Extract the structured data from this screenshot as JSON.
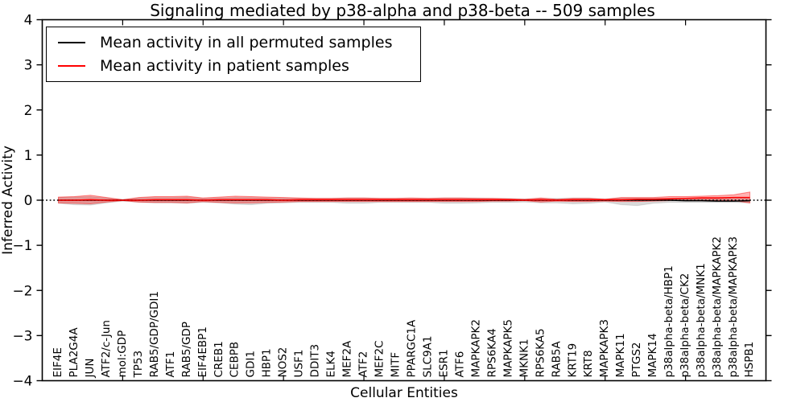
{
  "chart_data": {
    "type": "line",
    "title": "Signaling mediated by p38-alpha and p38-beta -- 509 samples",
    "xlabel": "Cellular Entities",
    "ylabel": "Inferred Activity",
    "ylim": [
      -4,
      4
    ],
    "ytick_values": [
      4,
      3,
      2,
      1,
      0,
      -1,
      -2,
      -3,
      -4
    ],
    "ytick_labels": [
      "4",
      "3",
      "2",
      "1",
      "0",
      "−1",
      "−2",
      "−3",
      "−4"
    ],
    "x_tick_start": 4,
    "x_tick_every": 5,
    "grid": false,
    "legend_position": "upper left",
    "zero_line_style": "dotted",
    "categories": [
      "EIF4E",
      "PLA2G4A",
      "JUN",
      "ATF2/c-Jun",
      "mol:GDP",
      "TP53",
      "RAB5/GDP/GDI1",
      "ATF1",
      "RAB5/GDP",
      "EIF4EBP1",
      "CREB1",
      "CEBPB",
      "GDI1",
      "HBP1",
      "NOS2",
      "USF1",
      "DDIT3",
      "ELK4",
      "MEF2A",
      "ATF2",
      "MEF2C",
      "MITF",
      "PPARGC1A",
      "SLC9A1",
      "ESR1",
      "ATF6",
      "MAPKAPK2",
      "RPS6KA4",
      "MAPKAPK5",
      "MKNK1",
      "RPS6KA5",
      "RAB5A",
      "KRT19",
      "KRT8",
      "MAPKAPK3",
      "MAPK11",
      "PTGS2",
      "MAPK14",
      "p38alpha-beta/HBP1",
      "p38alpha-beta/CK2",
      "p38alpha-beta/MNK1",
      "p38alpha-beta/MAPKAPK2",
      "p38alpha-beta/MAPKAPK3",
      "HSPB1"
    ],
    "series": [
      {
        "key": "permuted",
        "name": "Mean activity in all permuted samples",
        "color": "#000000",
        "values": [
          0,
          0,
          0,
          0,
          0,
          0,
          0,
          0,
          0,
          0,
          0,
          0,
          0,
          0,
          0,
          0,
          0,
          0,
          0,
          0,
          0,
          0,
          0,
          0,
          0,
          0,
          0,
          0,
          0,
          0,
          0,
          0,
          0,
          0,
          0,
          0,
          0,
          0,
          0,
          -0.01,
          -0.01,
          -0.02,
          -0.02,
          -0.01
        ],
        "band": {
          "color": "rgba(0,0,0,0.15)",
          "edge": "rgba(0,0,0,0.10)",
          "upper": [
            0.06,
            0.07,
            0.08,
            0.05,
            0.02,
            0.05,
            0.06,
            0.06,
            0.07,
            0.04,
            0.05,
            0.06,
            0.06,
            0.05,
            0.05,
            0.04,
            0.04,
            0.04,
            0.05,
            0.05,
            0.04,
            0.04,
            0.04,
            0.04,
            0.05,
            0.05,
            0.05,
            0.04,
            0.04,
            0.03,
            0.04,
            0.04,
            0.05,
            0.05,
            0.03,
            0.05,
            0.05,
            0.05,
            0.04,
            0.04,
            0.04,
            0.04,
            0.04,
            0.05
          ],
          "lower": [
            -0.07,
            -0.1,
            -0.11,
            -0.06,
            -0.02,
            -0.05,
            -0.06,
            -0.06,
            -0.07,
            -0.05,
            -0.06,
            -0.09,
            -0.1,
            -0.07,
            -0.06,
            -0.05,
            -0.05,
            -0.05,
            -0.07,
            -0.07,
            -0.05,
            -0.05,
            -0.05,
            -0.05,
            -0.07,
            -0.07,
            -0.06,
            -0.05,
            -0.05,
            -0.04,
            -0.06,
            -0.06,
            -0.08,
            -0.07,
            -0.04,
            -0.1,
            -0.12,
            -0.07,
            -0.05,
            -0.05,
            -0.05,
            -0.05,
            -0.05,
            -0.06
          ]
        }
      },
      {
        "key": "patient",
        "name": "Mean activity in patient samples",
        "color": "#ff0000",
        "values": [
          0,
          0,
          0.01,
          0,
          0,
          0,
          0.01,
          0.01,
          0.01,
          0,
          0.01,
          0.01,
          0.01,
          0.01,
          0,
          0.01,
          0.01,
          0.01,
          0.01,
          0.01,
          0.01,
          0.01,
          0.01,
          0.01,
          0.01,
          0.01,
          0.01,
          0.01,
          0.01,
          0,
          0.01,
          0,
          0.01,
          0.01,
          0.01,
          0.01,
          0.02,
          0.02,
          0.03,
          0.04,
          0.05,
          0.05,
          0.06,
          0.06
        ],
        "band": {
          "color": "rgba(255,0,0,0.30)",
          "edge": "rgba(255,0,0,0.45)",
          "upper": [
            0.07,
            0.08,
            0.11,
            0.06,
            0.01,
            0.06,
            0.08,
            0.08,
            0.09,
            0.05,
            0.07,
            0.09,
            0.08,
            0.07,
            0.06,
            0.05,
            0.04,
            0.04,
            0.05,
            0.05,
            0.04,
            0.04,
            0.05,
            0.04,
            0.05,
            0.05,
            0.04,
            0.04,
            0.03,
            0.02,
            0.05,
            0.02,
            0.04,
            0.04,
            0.02,
            0.06,
            0.06,
            0.06,
            0.08,
            0.08,
            0.09,
            0.1,
            0.12,
            0.18
          ],
          "lower": [
            -0.06,
            -0.07,
            -0.08,
            -0.04,
            -0.01,
            -0.04,
            -0.05,
            -0.05,
            -0.06,
            -0.03,
            -0.05,
            -0.06,
            -0.06,
            -0.05,
            -0.04,
            -0.03,
            -0.03,
            -0.03,
            -0.03,
            -0.03,
            -0.03,
            -0.03,
            -0.03,
            -0.03,
            -0.03,
            -0.03,
            -0.03,
            -0.02,
            -0.02,
            -0.01,
            -0.04,
            -0.02,
            -0.03,
            -0.03,
            -0.02,
            -0.03,
            -0.03,
            -0.02,
            -0.01,
            0,
            0,
            0,
            -0.01,
            -0.06
          ]
        }
      }
    ]
  }
}
